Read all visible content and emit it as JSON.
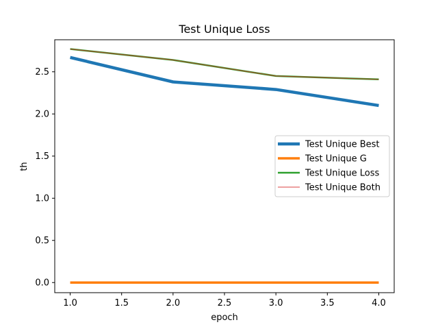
{
  "chart_data": {
    "type": "line",
    "title": "Test Unique Loss",
    "xlabel": "epoch",
    "ylabel": "th",
    "x": [
      1.0,
      2.0,
      3.0,
      4.0
    ],
    "xlim": [
      0.85,
      4.15
    ],
    "ylim": [
      -0.12,
      2.88
    ],
    "xticks": [
      1.0,
      1.5,
      2.0,
      2.5,
      3.0,
      3.5,
      4.0
    ],
    "xtick_labels": [
      "1.0",
      "1.5",
      "2.0",
      "2.5",
      "3.0",
      "3.5",
      "4.0"
    ],
    "yticks": [
      0.0,
      0.5,
      1.0,
      1.5,
      2.0,
      2.5
    ],
    "ytick_labels": [
      "0.0",
      "0.5",
      "1.0",
      "1.5",
      "2.0",
      "2.5"
    ],
    "grid": false,
    "legend_position": "center-right",
    "series": [
      {
        "name": "Test Unique Best",
        "values": [
          2.67,
          2.38,
          2.29,
          2.1
        ],
        "color": "#1f77b4",
        "line_width": 4.5
      },
      {
        "name": "Test Unique G",
        "values": [
          0.0,
          0.0,
          0.0,
          0.0
        ],
        "color": "#ff7f0e",
        "line_width": 3.5
      },
      {
        "name": "Test Unique Loss",
        "values": [
          2.77,
          2.64,
          2.45,
          2.41
        ],
        "color": "#2ca02c",
        "line_width": 2.5
      },
      {
        "name": "Test Unique Both",
        "values": [
          2.77,
          2.64,
          2.45,
          2.41
        ],
        "color": "#d62728",
        "line_width": 1.2,
        "opacity": 0.7
      }
    ]
  }
}
